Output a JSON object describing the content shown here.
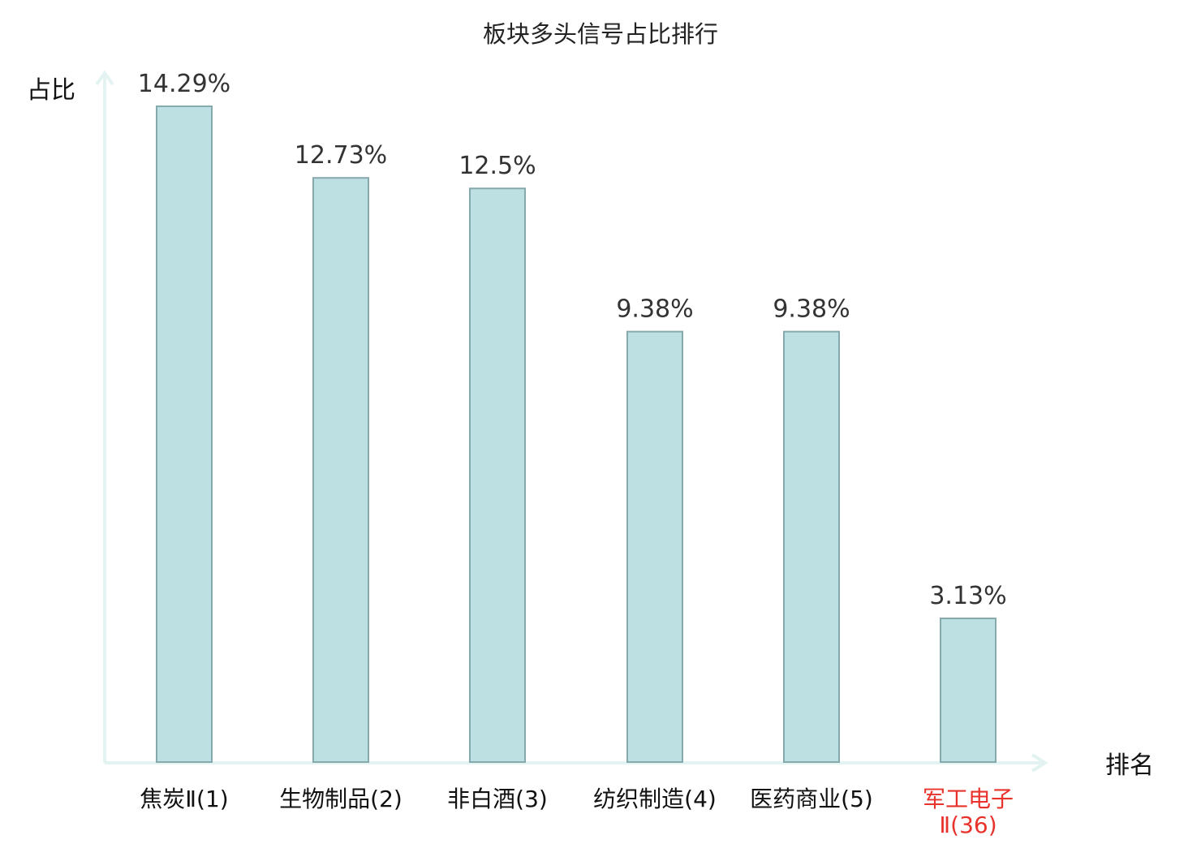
{
  "chart_data": {
    "type": "bar",
    "title": "板块多头信号占比排行",
    "ylabel": "占比",
    "xlabel": "排名",
    "categories": [
      {
        "name": "焦炭Ⅱ",
        "rank": "(1)"
      },
      {
        "name": "生物制品",
        "rank": "(2)"
      },
      {
        "name": "非白酒",
        "rank": "(3)"
      },
      {
        "name": "纺织制造",
        "rank": "(4)"
      },
      {
        "name": "医药商业",
        "rank": "(5)"
      },
      {
        "name": "军工电子",
        "name_line2": "Ⅱ",
        "rank": "(36)",
        "highlight": true
      }
    ],
    "values": [
      14.29,
      12.73,
      12.5,
      9.38,
      9.38,
      3.13
    ],
    "value_labels": [
      "14.29%",
      "12.73%",
      "12.5%",
      "9.38%",
      "9.38%",
      "3.13%"
    ],
    "ylim": [
      0,
      14.8
    ],
    "grid": false,
    "legend": "none",
    "colors": {
      "bar_fill": "#bde0e3",
      "bar_stroke": "#86a9ad",
      "axis": "#e2f3f1",
      "highlight": "#e8332c"
    }
  }
}
